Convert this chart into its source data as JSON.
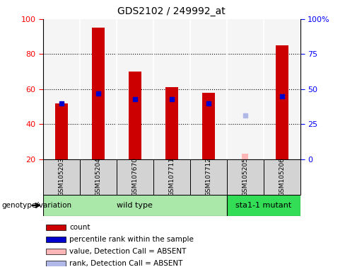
{
  "title": "GDS2102 / 249992_at",
  "samples": [
    "GSM105203",
    "GSM105204",
    "GSM107670",
    "GSM107711",
    "GSM107712",
    "GSM105205",
    "GSM105206"
  ],
  "count_values": [
    52,
    95,
    70,
    61,
    58,
    null,
    85
  ],
  "rank_values": [
    40,
    47,
    43,
    43,
    40,
    null,
    45
  ],
  "absent_value": [
    null,
    null,
    null,
    null,
    null,
    23,
    null
  ],
  "absent_rank": [
    null,
    null,
    null,
    null,
    null,
    31,
    null
  ],
  "left_ylim": [
    20,
    100
  ],
  "left_yticks": [
    20,
    40,
    60,
    80,
    100
  ],
  "right_yticks": [
    0,
    25,
    50,
    75,
    100
  ],
  "right_ylim": [
    0,
    100
  ],
  "wild_type_label": "wild type",
  "mutant_label": "sta1-1 mutant",
  "genotype_label": "genotype/variation",
  "bar_color": "#cc0000",
  "rank_color": "#0000cc",
  "absent_bar_color": "#ffb6b6",
  "absent_rank_color": "#b0b8e8",
  "plot_bg": "#f5f5f5",
  "wild_type_bg": "#aae8aa",
  "mutant_bg": "#33dd55",
  "sample_box_bg": "#d3d3d3",
  "bar_width": 0.35,
  "absent_bar_width": 0.18,
  "legend_labels": [
    "count",
    "percentile rank within the sample",
    "value, Detection Call = ABSENT",
    "rank, Detection Call = ABSENT"
  ],
  "legend_colors": [
    "#cc0000",
    "#0000cc",
    "#ffb6b6",
    "#b0b8e8"
  ]
}
